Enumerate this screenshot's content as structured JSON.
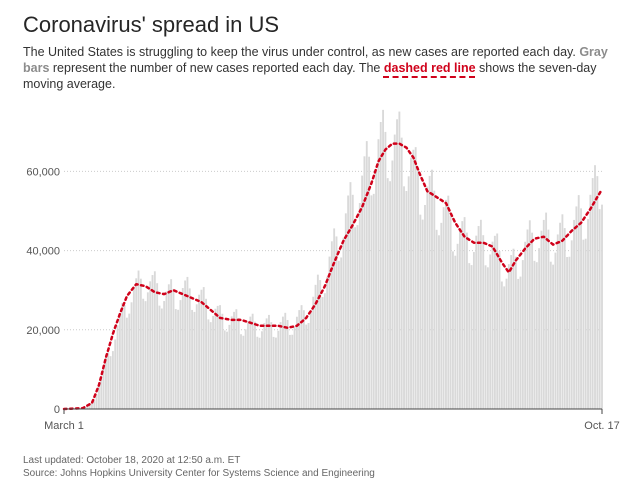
{
  "header": {
    "title": "Coronavirus' spread in US",
    "subtitle_part1": "The United States is struggling to keep the virus under control, as new cases are reported each day. ",
    "subtitle_gray": "Gray bars",
    "subtitle_part2": " represent the number of new cases reported each day. The ",
    "subtitle_red": "dashed red line",
    "subtitle_part3": " shows the seven-day moving average."
  },
  "footer": {
    "updated": "Last updated: October 18, 2020 at 12:50 a.m. ET",
    "source": "Source: Johns Hopkins University Center for Systems Science and Engineering"
  },
  "colors": {
    "bars": "#d9d9d9",
    "average_line": "#d0021b",
    "grid": "#cccccc"
  },
  "chart_data": {
    "type": "bar",
    "xlabel": "",
    "ylabel": "",
    "x_tick_labels": [
      "March 1",
      "Oct. 17"
    ],
    "y_ticks": [
      0,
      20000,
      40000,
      60000
    ],
    "y_tick_labels": [
      "0",
      "20,000",
      "40,000",
      "60,000"
    ],
    "ylim": [
      0,
      76000
    ],
    "grid": true,
    "days": 231,
    "series": [
      {
        "kind": "bars",
        "keypoints": [
          [
            0,
            20
          ],
          [
            7,
            150
          ],
          [
            10,
            600
          ],
          [
            13,
            2500
          ],
          [
            16,
            8000
          ],
          [
            18,
            12000
          ],
          [
            21,
            17000
          ],
          [
            24,
            22000
          ],
          [
            28,
            28000
          ],
          [
            31,
            30000
          ],
          [
            34,
            32000
          ],
          [
            37,
            31000
          ],
          [
            41,
            30000
          ],
          [
            44,
            28500
          ],
          [
            48,
            29000
          ],
          [
            52,
            29500
          ],
          [
            56,
            28500
          ],
          [
            60,
            27000
          ],
          [
            64,
            25000
          ],
          [
            67,
            23000
          ],
          [
            72,
            22500
          ],
          [
            77,
            21500
          ],
          [
            82,
            21000
          ],
          [
            87,
            20800
          ],
          [
            92,
            21000
          ],
          [
            97,
            21500
          ],
          [
            102,
            23000
          ],
          [
            106,
            26000
          ],
          [
            110,
            31000
          ],
          [
            114,
            37000
          ],
          [
            118,
            43000
          ],
          [
            122,
            49000
          ],
          [
            126,
            54000
          ],
          [
            129,
            58000
          ],
          [
            132,
            62000
          ],
          [
            135,
            65500
          ],
          [
            139,
            67000
          ],
          [
            143,
            66500
          ],
          [
            147,
            64000
          ],
          [
            151,
            58000
          ],
          [
            156,
            54000
          ],
          [
            160,
            52000
          ],
          [
            164,
            48000
          ],
          [
            168,
            45000
          ],
          [
            172,
            42500
          ],
          [
            178,
            42000
          ],
          [
            183,
            41500
          ],
          [
            187,
            38000
          ],
          [
            190,
            35000
          ],
          [
            193,
            35500
          ],
          [
            197,
            40000
          ],
          [
            202,
            43000
          ],
          [
            207,
            43500
          ],
          [
            211,
            42000
          ],
          [
            215,
            43500
          ],
          [
            220,
            46500
          ],
          [
            224,
            50000
          ],
          [
            228,
            54000
          ],
          [
            231,
            60000
          ]
        ]
      },
      {
        "kind": "line",
        "keypoints": [
          [
            0,
            0
          ],
          [
            8,
            200
          ],
          [
            12,
            1500
          ],
          [
            15,
            6000
          ],
          [
            18,
            13000
          ],
          [
            21,
            19000
          ],
          [
            24,
            24000
          ],
          [
            27,
            28500
          ],
          [
            31,
            31500
          ],
          [
            35,
            31000
          ],
          [
            39,
            29500
          ],
          [
            43,
            29000
          ],
          [
            47,
            30000
          ],
          [
            51,
            29000
          ],
          [
            55,
            28000
          ],
          [
            59,
            27000
          ],
          [
            63,
            25000
          ],
          [
            67,
            23000
          ],
          [
            72,
            22500
          ],
          [
            76,
            22500
          ],
          [
            80,
            21800
          ],
          [
            84,
            21000
          ],
          [
            88,
            21000
          ],
          [
            92,
            21000
          ],
          [
            96,
            20500
          ],
          [
            100,
            21000
          ],
          [
            104,
            23000
          ],
          [
            108,
            26500
          ],
          [
            112,
            31000
          ],
          [
            116,
            37000
          ],
          [
            120,
            42500
          ],
          [
            124,
            46500
          ],
          [
            128,
            51000
          ],
          [
            132,
            57000
          ],
          [
            135,
            62500
          ],
          [
            138,
            65500
          ],
          [
            141,
            67000
          ],
          [
            144,
            67000
          ],
          [
            147,
            66000
          ],
          [
            150,
            63500
          ],
          [
            153,
            59000
          ],
          [
            156,
            55000
          ],
          [
            160,
            53500
          ],
          [
            164,
            52000
          ],
          [
            168,
            47000
          ],
          [
            172,
            43500
          ],
          [
            176,
            42000
          ],
          [
            180,
            42000
          ],
          [
            184,
            41000
          ],
          [
            188,
            37000
          ],
          [
            191,
            34500
          ],
          [
            194,
            37500
          ],
          [
            198,
            40500
          ],
          [
            202,
            43000
          ],
          [
            206,
            43500
          ],
          [
            210,
            41500
          ],
          [
            214,
            42500
          ],
          [
            218,
            45000
          ],
          [
            222,
            47000
          ],
          [
            226,
            50500
          ],
          [
            229,
            53500
          ],
          [
            231,
            55500
          ]
        ]
      }
    ]
  }
}
